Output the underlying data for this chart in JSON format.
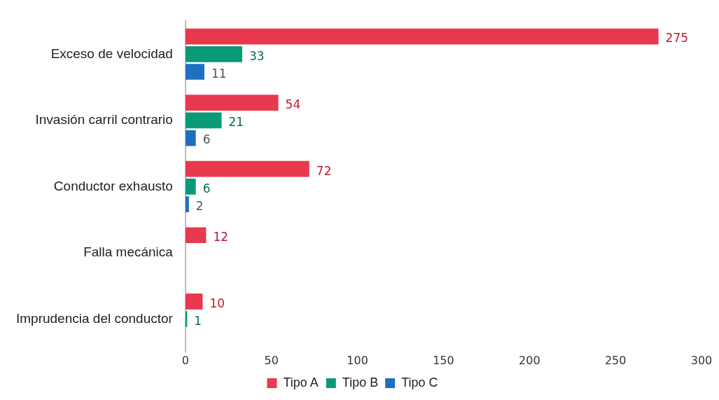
{
  "chart_data": {
    "type": "bar",
    "orientation": "horizontal",
    "categories": [
      "Exceso de velocidad",
      "Invasión carril contrario",
      "Conductor exhausto",
      "Falla mecánica",
      "Imprudencia del conductor"
    ],
    "series": [
      {
        "name": "Tipo A",
        "color": "#e8394f",
        "values": [
          275,
          54,
          72,
          12,
          10
        ]
      },
      {
        "name": "Tipo B",
        "color": "#0a9a78",
        "values": [
          33,
          21,
          6,
          null,
          1
        ]
      },
      {
        "name": "Tipo C",
        "color": "#1f6fc0",
        "values": [
          11,
          6,
          2,
          null,
          null
        ]
      }
    ],
    "xlim": [
      0,
      300
    ],
    "xticks": [
      0,
      50,
      100,
      150,
      200,
      250,
      300
    ],
    "data_labels": true,
    "legend": "bottom",
    "grid": false
  }
}
